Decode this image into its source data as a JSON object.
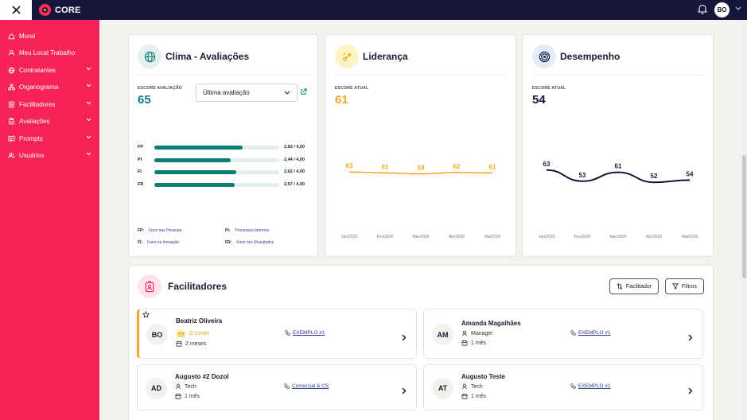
{
  "app": {
    "logo_text": "CORE",
    "user_initials": "BO"
  },
  "sidebar": {
    "items": [
      {
        "label": "Mural",
        "icon": "home-icon",
        "expandable": false
      },
      {
        "label": "Meu Local Trabalho",
        "icon": "user-badge-icon",
        "expandable": false
      },
      {
        "label": "Contratantes",
        "icon": "globe-icon",
        "expandable": true
      },
      {
        "label": "Organograma",
        "icon": "org-chart-icon",
        "expandable": true
      },
      {
        "label": "Facilitadores",
        "icon": "id-badge-icon",
        "expandable": true
      },
      {
        "label": "Avaliações",
        "icon": "clipboard-icon",
        "expandable": true
      },
      {
        "label": "Prompts",
        "icon": "prompt-icon",
        "expandable": true
      },
      {
        "label": "Usuários",
        "icon": "users-icon",
        "expandable": true
      }
    ]
  },
  "clima": {
    "title": "Clima - Avaliações",
    "score_label": "ESCORE AVALIAÇÃO",
    "score": "65",
    "select_value": "Última avaliação",
    "bars": [
      {
        "code": "FP",
        "value": 2.83,
        "max": 4.0,
        "text": "2,83 / 4,00"
      },
      {
        "code": "PI",
        "value": 2.44,
        "max": 4.0,
        "text": "2,44 / 4,00"
      },
      {
        "code": "FI",
        "value": 2.62,
        "max": 4.0,
        "text": "2,62 / 4,00"
      },
      {
        "code": "FR",
        "value": 2.57,
        "max": 4.0,
        "text": "2,57 / 4,00"
      }
    ],
    "legend": [
      {
        "code": "FP:",
        "text": "Foco nas Pessoas"
      },
      {
        "code": "PI:",
        "text": "Processos Internos"
      },
      {
        "code": "FI:",
        "text": "Foco na Inovação"
      },
      {
        "code": "FR:",
        "text": "Foco nos Resultados"
      }
    ]
  },
  "lideranca": {
    "title": "Liderança",
    "score_label": "ESCORE ATUAL",
    "score": "61",
    "color": "#f5a623"
  },
  "desempenho": {
    "title": "Desempenho",
    "score_label": "ESCORE ATUAL",
    "score": "54",
    "color": "#16163a"
  },
  "chart_data": [
    {
      "type": "line",
      "categories": [
        "Jan/2026",
        "Fev/2026",
        "Mar/2026",
        "Abr/2026",
        "Mai/2026"
      ],
      "values": [
        63,
        61,
        59,
        62,
        61
      ],
      "ylim": [
        0,
        100
      ]
    },
    {
      "type": "line",
      "categories": [
        "Jan/2026",
        "Fev/2026",
        "Mar/2026",
        "Abr/2026",
        "Mai/2026"
      ],
      "values": [
        63,
        53,
        61,
        52,
        54
      ],
      "ylim": [
        0,
        100
      ]
    }
  ],
  "facilitadores": {
    "title": "Facilitadores",
    "btn_facilitador": "Facilitador",
    "btn_filtros": "Filtros",
    "people": [
      {
        "initials": "BO",
        "name": "Beatriz Oliveira",
        "role": "C-Level",
        "role_icon": "crown-icon",
        "highlight": true,
        "time": "2 meses",
        "link": "EXEMPLO #1"
      },
      {
        "initials": "AM",
        "name": "Amanda Magalhães",
        "role": "Manager",
        "role_icon": "person-icon",
        "highlight": false,
        "time": "1 mês",
        "link": "EXEMPLO #1"
      },
      {
        "initials": "AD",
        "name": "Augusto #2 Dozol",
        "role": "Tech",
        "role_icon": "person-icon",
        "highlight": false,
        "time": "1 mês",
        "link": "Comercial & CS"
      },
      {
        "initials": "AT",
        "name": "Augusto Teste",
        "role": "Tech",
        "role_icon": "person-icon",
        "highlight": false,
        "time": "1 mês",
        "link": "EXEMPLO #1"
      }
    ]
  }
}
